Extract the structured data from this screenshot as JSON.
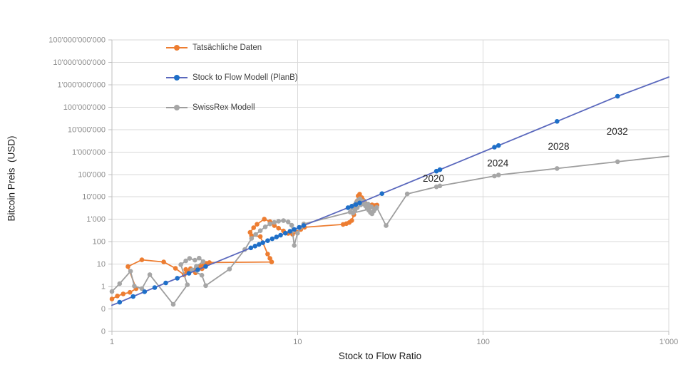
{
  "chart_data": {
    "type": "scatter",
    "title": "",
    "xlabel": "Stock to Flow Ratio",
    "ylabel": "Bitcoin Preis  (USD)",
    "x_scale": "log",
    "y_scale": "log",
    "xlim": [
      1,
      1000
    ],
    "ylim": [
      0.01,
      100000000000
    ],
    "grid": true,
    "legend_position": "top-left-inside",
    "x_ticks": [
      {
        "value": 1,
        "label": "1"
      },
      {
        "value": 10,
        "label": "10"
      },
      {
        "value": 100,
        "label": "100"
      },
      {
        "value": 1000,
        "label": "1'000"
      }
    ],
    "y_ticks": [
      {
        "value": 100000000000,
        "label": "100'000'000'000"
      },
      {
        "value": 10000000000,
        "label": "10'000'000'000"
      },
      {
        "value": 1000000000,
        "label": "1'000'000'000"
      },
      {
        "value": 100000000,
        "label": "100'000'000"
      },
      {
        "value": 10000000,
        "label": "10'000'000"
      },
      {
        "value": 1000000,
        "label": "1'000'000"
      },
      {
        "value": 100000,
        "label": "100'000"
      },
      {
        "value": 10000,
        "label": "10'000"
      },
      {
        "value": 1000,
        "label": "1'000"
      },
      {
        "value": 100,
        "label": "100"
      },
      {
        "value": 10,
        "label": "10"
      },
      {
        "value": 1,
        "label": "1"
      },
      {
        "value": 0.1,
        "label": "0"
      },
      {
        "value": 0.01,
        "label": "0"
      }
    ],
    "series": [
      {
        "id": "tatsaechliche-daten",
        "name": "Tatsächliche Daten",
        "line_color": "#ED7D31",
        "marker_color": "#ED7D31",
        "marker_radius": 3.3,
        "points": [
          [
            1.0,
            0.28
          ],
          [
            1.07,
            0.38
          ],
          [
            1.15,
            0.47
          ],
          [
            1.25,
            0.55
          ],
          [
            1.35,
            0.8
          ],
          [
            1.22,
            7.8
          ],
          [
            1.45,
            15.5
          ],
          [
            1.9,
            12.5
          ],
          [
            2.2,
            6.5
          ],
          [
            2.45,
            3.3
          ],
          [
            2.5,
            5.8
          ],
          [
            2.55,
            4.6
          ],
          [
            2.65,
            6.3
          ],
          [
            2.78,
            5.1
          ],
          [
            2.82,
            4.1
          ],
          [
            2.88,
            6.8
          ],
          [
            2.97,
            8.2
          ],
          [
            3.06,
            6.2
          ],
          [
            3.12,
            9.6
          ],
          [
            3.22,
            10.8
          ],
          [
            3.35,
            11.8
          ],
          [
            7.25,
            12.5
          ],
          [
            7.1,
            18
          ],
          [
            6.9,
            28
          ],
          [
            6.3,
            170
          ],
          [
            5.65,
            185
          ],
          [
            5.55,
            260
          ],
          [
            5.8,
            420
          ],
          [
            6.05,
            600
          ],
          [
            6.62,
            1020
          ],
          [
            7.1,
            780
          ],
          [
            7.5,
            520
          ],
          [
            7.9,
            400
          ],
          [
            8.4,
            300
          ],
          [
            8.9,
            235
          ],
          [
            9.4,
            215
          ],
          [
            9.9,
            265
          ],
          [
            10.4,
            350
          ],
          [
            10.9,
            440
          ],
          [
            17.6,
            590
          ],
          [
            18.3,
            640
          ],
          [
            19.0,
            720
          ],
          [
            19.6,
            880
          ],
          [
            20.1,
            1600
          ],
          [
            20.5,
            3200
          ],
          [
            20.9,
            6400
          ],
          [
            21.2,
            11000
          ],
          [
            21.6,
            13200
          ],
          [
            22.2,
            9200
          ],
          [
            22.7,
            6900
          ],
          [
            23.2,
            5200
          ],
          [
            23.7,
            4100
          ],
          [
            24.2,
            3400
          ],
          [
            24.7,
            3800
          ],
          [
            25.2,
            4400
          ],
          [
            25.7,
            3700
          ],
          [
            26.2,
            4100
          ],
          [
            26.8,
            4300
          ]
        ]
      },
      {
        "id": "stock-to-flow-modell-planb",
        "name": "Stock to Flow Modell (PlanB)",
        "line_color": "#5A68BD",
        "marker_color": "#1E6FC8",
        "marker_radius": 3.3,
        "line_start": [
          1,
          0.147
        ],
        "line_end": [
          1000,
          2200000000
        ],
        "points": [
          [
            1.1,
            0.2
          ],
          [
            1.3,
            0.36
          ],
          [
            1.5,
            0.59
          ],
          [
            1.7,
            0.9
          ],
          [
            1.95,
            1.45
          ],
          [
            2.25,
            2.35
          ],
          [
            2.6,
            3.9
          ],
          [
            2.9,
            5.6
          ],
          [
            3.2,
            7.9
          ],
          [
            5.6,
            53
          ],
          [
            5.9,
            64
          ],
          [
            6.2,
            76
          ],
          [
            6.5,
            90
          ],
          [
            6.9,
            111
          ],
          [
            7.3,
            135
          ],
          [
            7.7,
            163
          ],
          [
            8.1,
            195
          ],
          [
            8.6,
            240
          ],
          [
            9.1,
            292
          ],
          [
            9.6,
            354
          ],
          [
            10.2,
            435
          ],
          [
            10.8,
            529
          ],
          [
            18.7,
            3290
          ],
          [
            19.6,
            3840
          ],
          [
            20.6,
            4550
          ],
          [
            21.6,
            5360
          ],
          [
            28.5,
            13900
          ],
          [
            56,
            140000
          ],
          [
            58.5,
            163000
          ],
          [
            115,
            1640000
          ],
          [
            121,
            1950000
          ],
          [
            250,
            23300000
          ],
          [
            530,
            305000000
          ]
        ]
      },
      {
        "id": "swissrex-modell",
        "name": "SwissRex Modell",
        "line_color": "#9E9E9E",
        "marker_color": "#A6A6A6",
        "marker_radius": 3.3,
        "line_end": [
          1000,
          650000
        ],
        "points": [
          [
            1.0,
            0.6
          ],
          [
            1.1,
            1.35
          ],
          [
            1.26,
            4.8
          ],
          [
            1.32,
            1.05
          ],
          [
            1.45,
            0.8
          ],
          [
            1.6,
            3.4
          ],
          [
            2.14,
            0.16
          ],
          [
            2.55,
            1.2
          ],
          [
            2.35,
            9.5
          ],
          [
            2.5,
            14
          ],
          [
            2.62,
            18
          ],
          [
            2.8,
            15
          ],
          [
            2.95,
            18.5
          ],
          [
            3.1,
            13
          ],
          [
            2.85,
            8
          ],
          [
            2.7,
            5.5
          ],
          [
            3.05,
            3.2
          ],
          [
            3.2,
            1.1
          ],
          [
            4.3,
            6
          ],
          [
            5.2,
            45
          ],
          [
            5.65,
            140
          ],
          [
            5.95,
            210
          ],
          [
            6.3,
            310
          ],
          [
            6.7,
            460
          ],
          [
            7.1,
            620
          ],
          [
            7.5,
            730
          ],
          [
            7.9,
            820
          ],
          [
            8.4,
            870
          ],
          [
            8.9,
            760
          ],
          [
            9.3,
            540
          ],
          [
            9.6,
            68
          ],
          [
            10.0,
            240
          ],
          [
            10.4,
            430
          ],
          [
            10.8,
            620
          ],
          [
            19.2,
            2100
          ],
          [
            19.7,
            3100
          ],
          [
            20.2,
            4200
          ],
          [
            20.7,
            5600
          ],
          [
            21.2,
            7200
          ],
          [
            21.7,
            8200
          ],
          [
            22.2,
            6600
          ],
          [
            22.9,
            6200
          ],
          [
            22.7,
            5100
          ],
          [
            23.2,
            4000
          ],
          [
            24.0,
            4800
          ],
          [
            23.7,
            3100
          ],
          [
            24.2,
            2500
          ],
          [
            24.7,
            2000
          ],
          [
            25.2,
            1750
          ],
          [
            25.7,
            2300
          ],
          [
            26.2,
            2900
          ],
          [
            25.0,
            3600
          ],
          [
            21.9,
            4400
          ],
          [
            21.0,
            3300
          ],
          [
            20.4,
            2500
          ],
          [
            19.9,
            1900
          ],
          [
            26.7,
            3400
          ],
          [
            30,
            520
          ],
          [
            39,
            13500
          ],
          [
            56,
            28000
          ],
          [
            58.5,
            31000
          ],
          [
            115,
            85000
          ],
          [
            121,
            95000
          ],
          [
            250,
            185000
          ],
          [
            530,
            370000
          ]
        ]
      }
    ],
    "annotations": [
      {
        "label": "2020",
        "x": 54,
        "y": 66000
      },
      {
        "label": "2024",
        "x": 120,
        "y": 316000
      },
      {
        "label": "2028",
        "x": 255,
        "y": 1800000
      },
      {
        "label": "2032",
        "x": 528,
        "y": 8300000
      }
    ],
    "colors": {
      "gridline": "#D9D9D9",
      "axis_line": "#BFBFBF",
      "tick_label": "#8C8C8C",
      "annotation_text": "#1f1f1f"
    }
  }
}
